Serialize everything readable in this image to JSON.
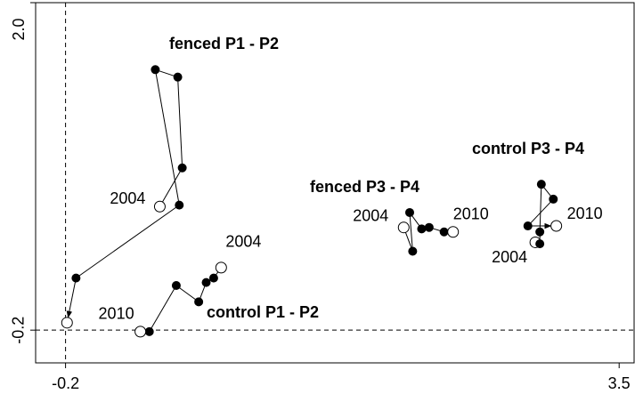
{
  "chart_data": {
    "type": "trajectory",
    "xlim": [
      -0.4,
      3.6
    ],
    "ylim": [
      -0.42,
      2.0
    ],
    "xticks": [
      -0.2,
      3.5
    ],
    "yticks": [
      -0.2,
      {
        "value": 2.0,
        "label": "2.0"
      }
    ],
    "reference_lines": {
      "x": -0.2,
      "y": -0.2
    },
    "color": "#000000",
    "series": [
      {
        "name": "fenced P1 - P2",
        "start_label": "2004",
        "x": [
          0.43,
          0.58,
          0.55,
          0.4,
          0.56,
          -0.13,
          -0.19
        ],
        "y": [
          0.63,
          0.89,
          1.5,
          1.55,
          0.64,
          0.15,
          -0.15
        ]
      },
      {
        "name": "control P1 - P2",
        "start_label": "2004",
        "end_label": "2010",
        "x": [
          0.84,
          0.79,
          0.74,
          0.69,
          0.54,
          0.36,
          0.3
        ],
        "y": [
          0.22,
          0.15,
          0.12,
          -0.01,
          0.1,
          -0.21,
          -0.21
        ]
      },
      {
        "name": "fenced P3 - P4",
        "start_label": "2004",
        "end_label": "2010",
        "x": [
          2.06,
          2.12,
          2.1,
          2.18,
          2.23,
          2.33,
          2.39
        ],
        "y": [
          0.49,
          0.33,
          0.59,
          0.48,
          0.49,
          0.46,
          0.46
        ]
      },
      {
        "name": "control P3 - P4",
        "start_label": "2004",
        "end_label": "2010",
        "x": [
          2.94,
          2.97,
          2.97,
          2.98,
          3.06,
          2.89,
          3.08
        ],
        "y": [
          0.39,
          0.38,
          0.46,
          0.78,
          0.68,
          0.5,
          0.5
        ]
      }
    ]
  }
}
